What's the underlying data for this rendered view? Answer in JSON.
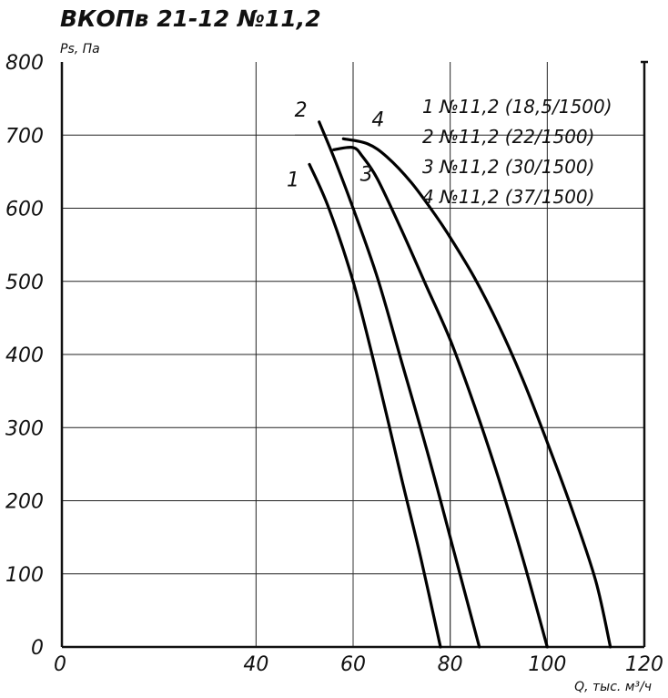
{
  "chart_data": {
    "type": "line",
    "title": "ВКОПв 21-12 №11,2",
    "xlabel": "Q, тыс. м³/ч",
    "ylabel": "Ps, Па",
    "xlim": [
      0,
      120
    ],
    "ylim": [
      0,
      800
    ],
    "x_ticks": [
      "0",
      "40",
      "60",
      "80",
      "100",
      "120"
    ],
    "y_ticks": [
      "0",
      "100",
      "200",
      "300",
      "400",
      "500",
      "600",
      "700",
      "800"
    ],
    "grid": true,
    "legend_position": "top-right",
    "legend": [
      "1 №11,2 (18,5/1500)",
      "2 №11,2 (22/1500)",
      "3 №11,2 (30/1500)",
      "4 №11,2 (37/1500)"
    ],
    "series": [
      {
        "name": "1",
        "x": [
          51,
          55,
          60,
          65,
          70,
          74,
          78
        ],
        "y": [
          660,
          600,
          500,
          370,
          230,
          120,
          0
        ]
      },
      {
        "name": "2",
        "x": [
          53,
          56,
          60,
          65,
          70,
          76,
          81,
          86
        ],
        "y": [
          718,
          670,
          600,
          505,
          390,
          250,
          125,
          0
        ]
      },
      {
        "name": "3",
        "x": [
          56,
          60,
          62,
          65,
          70,
          75,
          80,
          85,
          90,
          95,
          100
        ],
        "y": [
          680,
          683,
          670,
          640,
          570,
          495,
          420,
          330,
          230,
          120,
          0
        ]
      },
      {
        "name": "4",
        "x": [
          58,
          63,
          67,
          72,
          77,
          80,
          85,
          90,
          95,
          100,
          105,
          110,
          113
        ],
        "y": [
          695,
          688,
          670,
          635,
          590,
          560,
          505,
          440,
          365,
          280,
          190,
          90,
          0
        ]
      }
    ],
    "curve_labels": [
      "1",
      "2",
      "3",
      "4"
    ]
  }
}
